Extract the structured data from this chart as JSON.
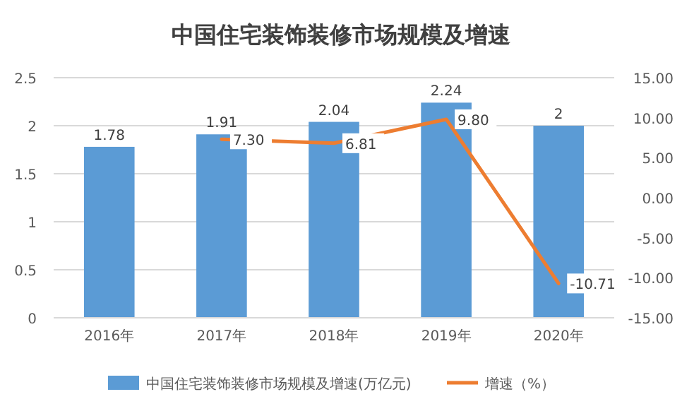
{
  "chart_data": {
    "type": "bar",
    "title": "中国住宅装饰装修市场规模及增速",
    "categories": [
      "2016年",
      "2017年",
      "2018年",
      "2019年",
      "2020年"
    ],
    "series": [
      {
        "name": "中国住宅装饰装修市场规模及增速(万亿元)",
        "color": "#5b9bd5",
        "values": [
          1.78,
          1.91,
          2.04,
          2.24,
          2
        ],
        "value_labels": [
          "1.78",
          "1.91",
          "2.04",
          "2.24",
          "2"
        ]
      },
      {
        "name": "增速（%）",
        "type": "line",
        "axis": "y2",
        "color": "#ed7d31",
        "values": [
          null,
          7.3,
          6.81,
          9.8,
          -10.71
        ],
        "value_labels": [
          null,
          "7.30",
          "6.81",
          "9.80",
          "-10.71"
        ]
      }
    ],
    "ylim": [
      0,
      2.5
    ],
    "yticks": [
      0,
      0.5,
      1,
      1.5,
      2,
      2.5
    ],
    "y2lim": [
      -15,
      15
    ],
    "y2ticks": [
      {
        "value": -15,
        "label": "-15.00"
      },
      {
        "value": -10,
        "label": "-10.00"
      },
      {
        "value": -5,
        "label": "-5.00"
      },
      {
        "value": 0,
        "label": "0.00"
      },
      {
        "value": 5,
        "label": "5.00"
      },
      {
        "value": 10,
        "label": "10.00"
      },
      {
        "value": 15,
        "label": "15.00"
      }
    ],
    "grid": "y",
    "legend": "bottom"
  }
}
